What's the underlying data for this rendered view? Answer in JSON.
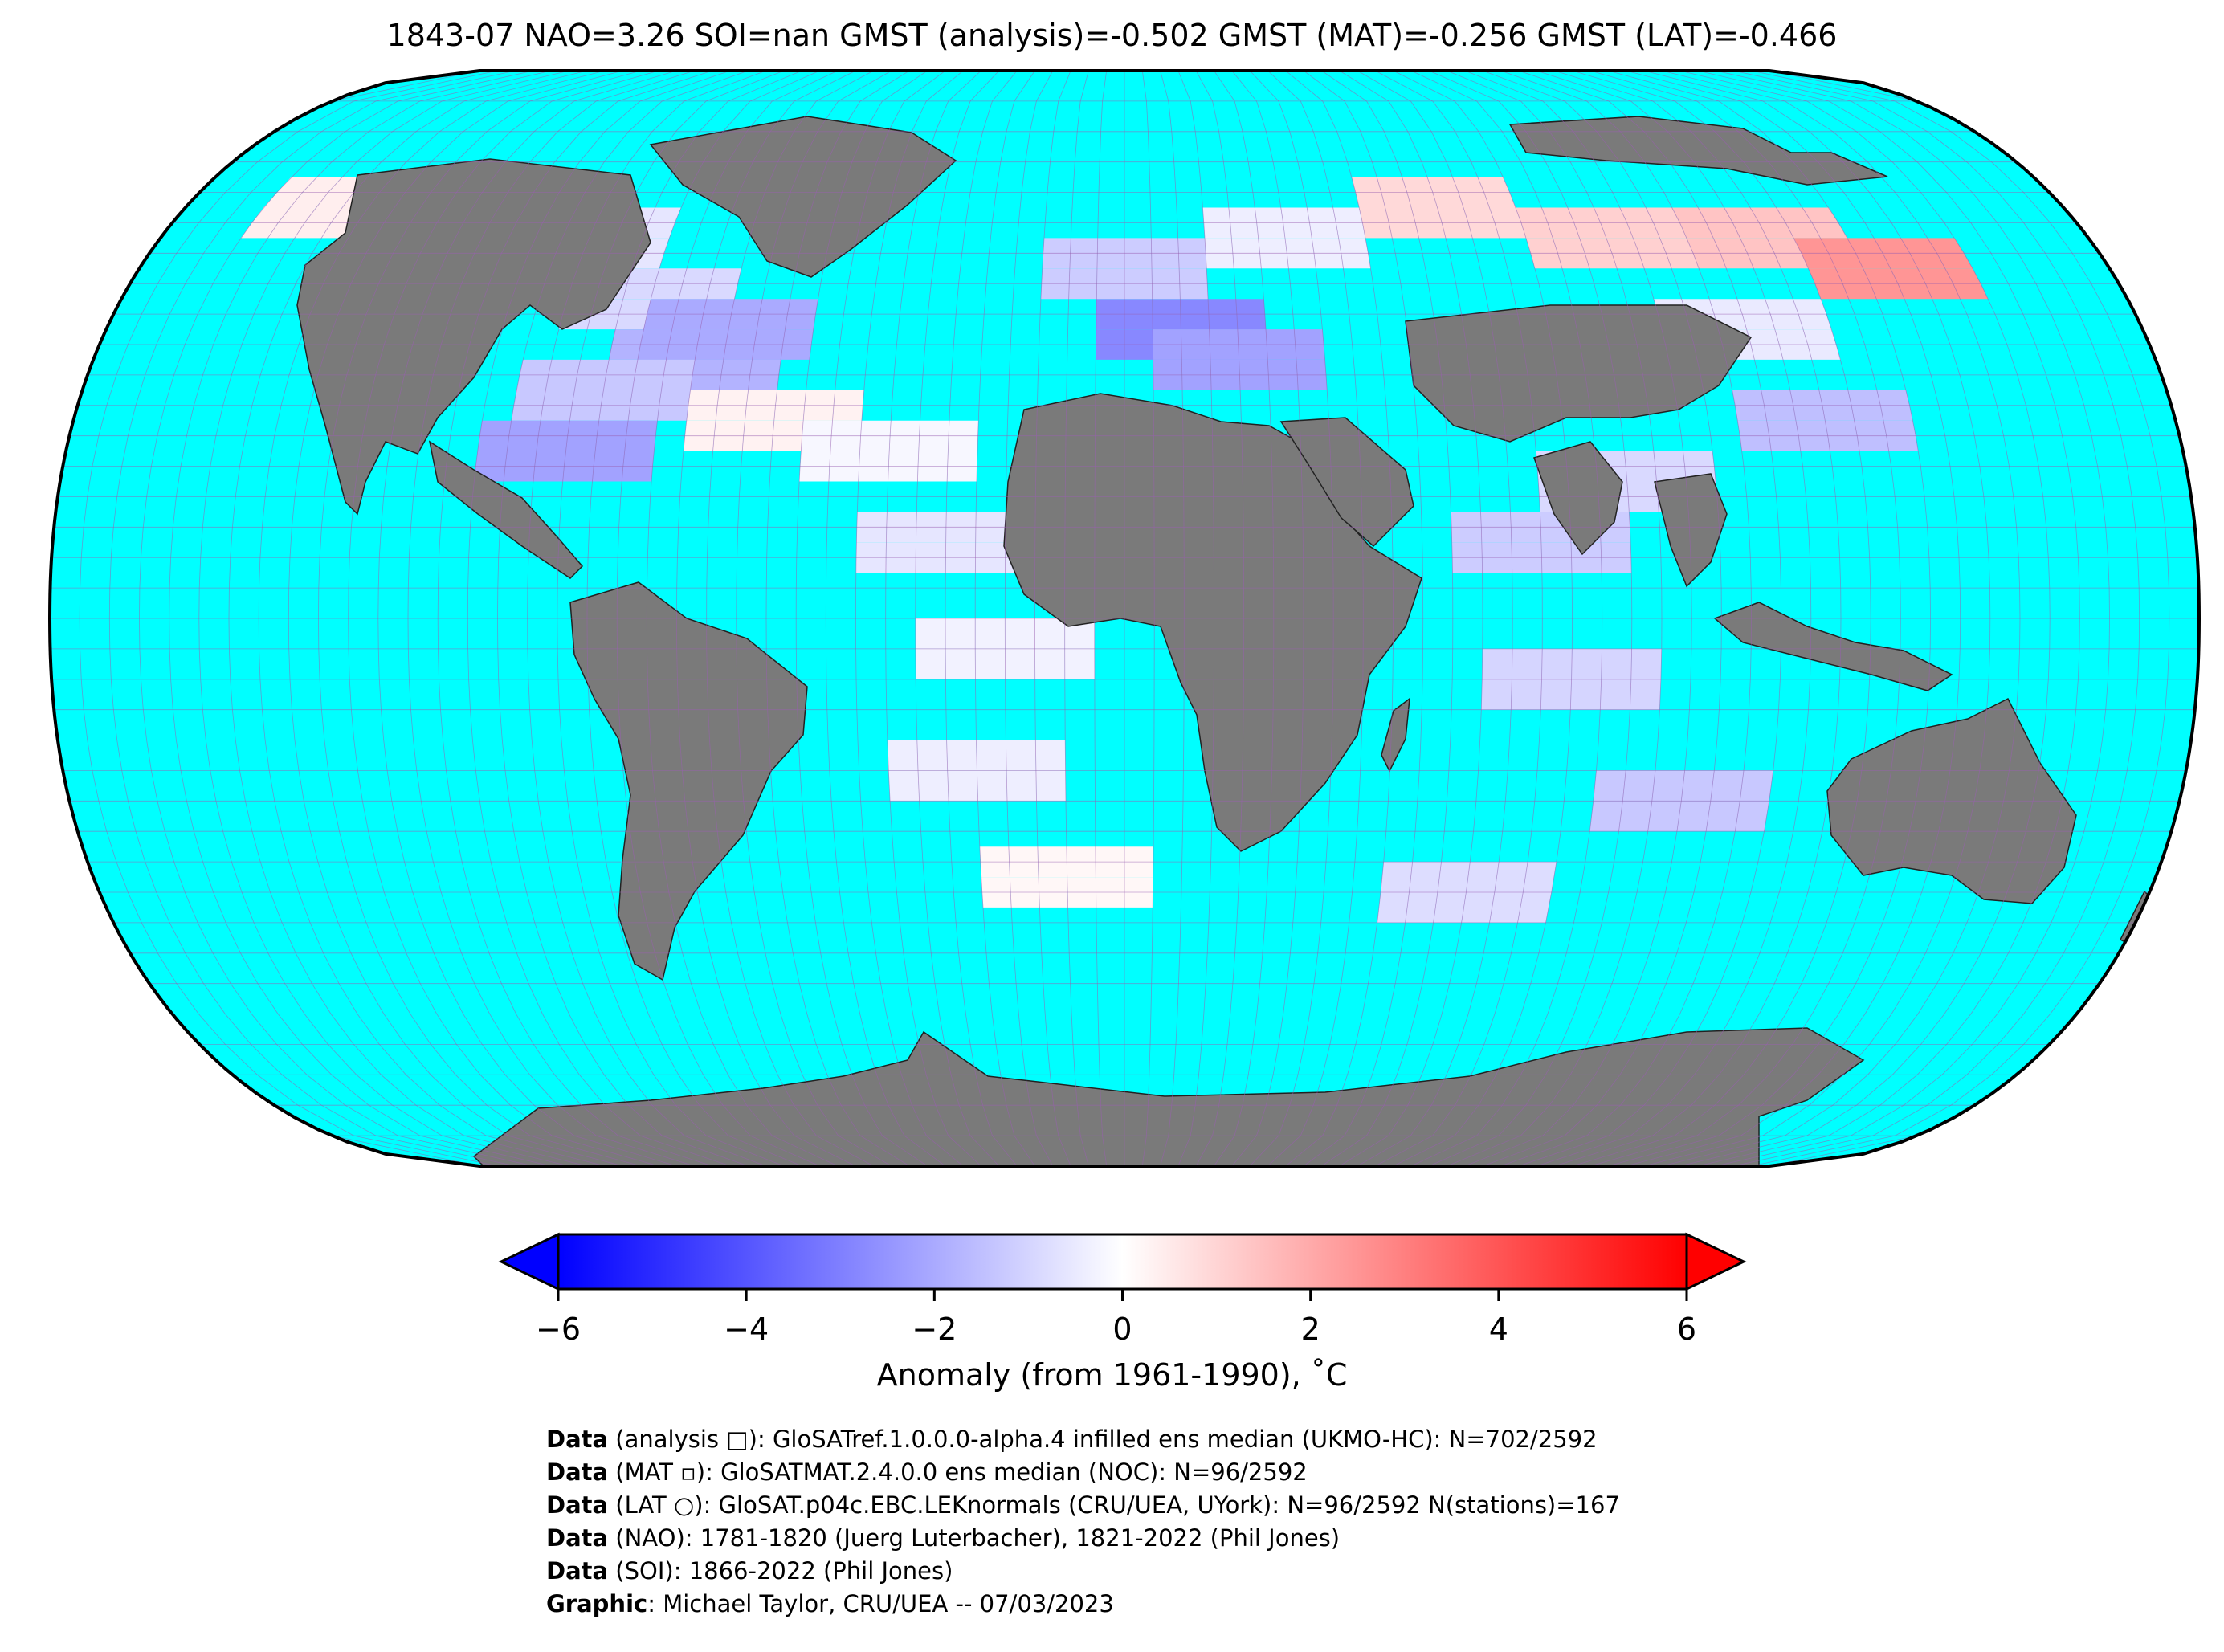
{
  "title": "1843-07 NAO=3.26 SOI=nan GMST (analysis)=-0.502 GMST (MAT)=-0.256 GMST (LAT)=-0.466",
  "colors": {
    "ocean": "#00ffff",
    "land": "#7a7a7a",
    "grid": "#9a5fb0",
    "cold": "#0000ff",
    "neutral": "#ffffff",
    "warm": "#ff0000"
  },
  "colorbar": {
    "min": -6,
    "max": 6,
    "ticks": [
      "−6",
      "−4",
      "−2",
      "0",
      "2",
      "4",
      "6"
    ],
    "tick_values": [
      -6,
      -4,
      -2,
      0,
      2,
      4,
      6
    ],
    "extend": "both",
    "label": "Anomaly (from 1961-1990), ˚C"
  },
  "map": {
    "projection": "Robinson",
    "grid_spacing_deg": 5,
    "anomaly_cells": [
      {
        "lon": -150,
        "lat": 67.5,
        "anomaly": 0.4
      },
      {
        "lon": -120,
        "lat": 67.5,
        "anomaly": -0.3
      },
      {
        "lon": -100,
        "lat": 62.5,
        "anomaly": -0.6
      },
      {
        "lon": -85,
        "lat": 52.5,
        "anomaly": -0.9
      },
      {
        "lon": -75,
        "lat": 42.5,
        "anomaly": -1.8
      },
      {
        "lon": -70,
        "lat": 47.5,
        "anomaly": -2.0
      },
      {
        "lon": -90,
        "lat": 37.5,
        "anomaly": -1.3
      },
      {
        "lon": -95,
        "lat": 27.5,
        "anomaly": -2.2
      },
      {
        "lon": -60,
        "lat": 32.5,
        "anomaly": 0.3
      },
      {
        "lon": -40,
        "lat": 27.5,
        "anomaly": -0.2
      },
      {
        "lon": -30,
        "lat": 12.5,
        "anomaly": -0.6
      },
      {
        "lon": -20,
        "lat": -5,
        "anomaly": -0.3
      },
      {
        "lon": -25,
        "lat": -25,
        "anomaly": -0.4
      },
      {
        "lon": -10,
        "lat": -42.5,
        "anomaly": 0.2
      },
      {
        "lon": 10,
        "lat": 47.5,
        "anomaly": -2.8
      },
      {
        "lon": 20,
        "lat": 42.5,
        "anomaly": -2.2
      },
      {
        "lon": 0,
        "lat": 57.5,
        "anomaly": -1.2
      },
      {
        "lon": 30,
        "lat": 62.5,
        "anomaly": -0.4
      },
      {
        "lon": 60,
        "lat": 67.5,
        "anomaly": 0.9
      },
      {
        "lon": 90,
        "lat": 62.5,
        "anomaly": 1.1
      },
      {
        "lon": 120,
        "lat": 62.5,
        "anomaly": 1.4
      },
      {
        "lon": 140,
        "lat": 57.5,
        "anomaly": 2.5
      },
      {
        "lon": 110,
        "lat": 47.5,
        "anomaly": -0.5
      },
      {
        "lon": 120,
        "lat": 32.5,
        "anomaly": -1.5
      },
      {
        "lon": 85,
        "lat": 22.5,
        "anomaly": -0.9
      },
      {
        "lon": 70,
        "lat": 12.5,
        "anomaly": -1.2
      },
      {
        "lon": 75,
        "lat": -10,
        "anomaly": -1.0
      },
      {
        "lon": 95,
        "lat": -30,
        "anomaly": -1.3
      },
      {
        "lon": 60,
        "lat": -45,
        "anomaly": -0.8
      }
    ]
  },
  "credits": [
    {
      "bold": "Data",
      "text": " (analysis □): GloSATref.1.0.0.0-alpha.4 infilled ens median (UKMO-HC): N=702/2592"
    },
    {
      "bold": "Data",
      "text": " (MAT ▫): GloSATMAT.2.4.0.0 ens median (NOC): N=96/2592"
    },
    {
      "bold": "Data",
      "text": " (LAT ○): GloSAT.p04c.EBC.LEKnormals (CRU/UEA, UYork): N=96/2592 N(stations)=167"
    },
    {
      "bold": "Data",
      "text": " (NAO): 1781-1820 (Juerg Luterbacher), 1821-2022 (Phil Jones)"
    },
    {
      "bold": "Data",
      "text": " (SOI): 1866-2022 (Phil Jones)"
    },
    {
      "bold": "Graphic",
      "text": ": Michael Taylor, CRU/UEA -- 07/03/2023"
    }
  ]
}
